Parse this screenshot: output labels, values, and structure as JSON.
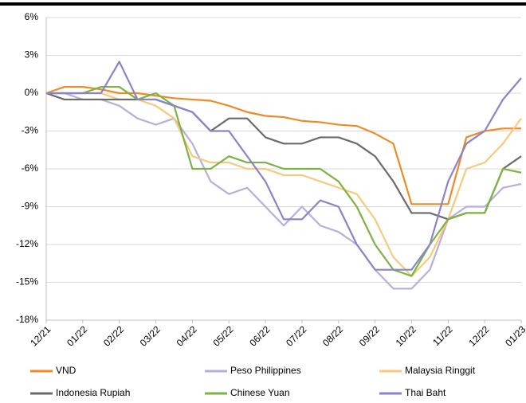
{
  "chart_data": {
    "type": "line",
    "categories": [
      "12/21",
      null,
      "01/22",
      null,
      "02/22",
      null,
      "03/22",
      null,
      "04/22",
      null,
      "05/22",
      null,
      "06/22",
      null,
      "07/22",
      null,
      "08/22",
      null,
      "09/22",
      null,
      "10/22",
      null,
      "11/22",
      null,
      "12/22",
      null,
      "01/23"
    ],
    "series": [
      {
        "name": "VND",
        "color": "#f08a24",
        "values": [
          0,
          0.5,
          0.5,
          0.3,
          0,
          0,
          -0.2,
          -0.4,
          -0.5,
          -0.6,
          -1,
          -1.5,
          -1.8,
          -1.9,
          -2.2,
          -2.3,
          -2.5,
          -2.6,
          -3.2,
          -4,
          -8.8,
          -8.8,
          -8.8,
          -3.5,
          -3,
          -2.8,
          -2.8
        ]
      },
      {
        "name": "Peso Philippines",
        "color": "#b7aede",
        "values": [
          0,
          0,
          -0.5,
          -0.5,
          -1,
          -2,
          -2.5,
          -2,
          -4,
          -7,
          -8,
          -7.5,
          -9,
          -10.5,
          -9,
          -10.5,
          -11,
          -12,
          -14,
          -15.5,
          -15.5,
          -14,
          -10,
          -9,
          -9,
          -7.5,
          -7.2
        ]
      },
      {
        "name": "Malaysia Ringgit",
        "color": "#f7c97c",
        "values": [
          0,
          0,
          0,
          0,
          -0.5,
          -0.5,
          -1,
          -2,
          -5,
          -5.5,
          -5.5,
          -6,
          -6,
          -6.5,
          -6.5,
          -7,
          -7.5,
          -8,
          -10,
          -13,
          -14.5,
          -13,
          -10,
          -6,
          -5.5,
          -4,
          -2
        ]
      },
      {
        "name": "Indonesia Rupiah",
        "color": "#6b6b6b",
        "values": [
          0,
          -0.5,
          -0.5,
          -0.5,
          -0.5,
          -0.5,
          -0.5,
          -1,
          -1.5,
          -3,
          -2,
          -2,
          -3.5,
          -4,
          -4,
          -3.5,
          -3.5,
          -4,
          -5,
          -7,
          -9.5,
          -9.5,
          -10,
          -9.5,
          -9.5,
          -6,
          -5
        ]
      },
      {
        "name": "Chinese Yuan",
        "color": "#7cb342",
        "values": [
          0,
          0,
          0,
          0.5,
          0.5,
          -0.5,
          0,
          -1,
          -6,
          -6,
          -5,
          -5.5,
          -5.5,
          -6,
          -6,
          -6,
          -7,
          -9,
          -12,
          -14,
          -14.5,
          -12,
          -10,
          -9.5,
          -9.5,
          -6,
          -6.3
        ]
      },
      {
        "name": "Thai Baht",
        "color": "#8983c9",
        "values": [
          0,
          0,
          0,
          0,
          2.5,
          -0.5,
          -0.5,
          -1,
          -1.5,
          -3,
          -3,
          -5,
          -7,
          -10,
          -10,
          -8.5,
          -9,
          -12,
          -14,
          -14,
          -14,
          -12,
          -7,
          -4,
          -3,
          -0.5,
          1.2
        ]
      }
    ],
    "ylim": [
      -18,
      6
    ],
    "yticks": [
      {
        "value": -18,
        "label": "-18%"
      },
      {
        "value": -15,
        "label": "-15%"
      },
      {
        "value": -12,
        "label": "-12%"
      },
      {
        "value": -9,
        "label": "-9%"
      },
      {
        "value": -6,
        "label": "-6%"
      },
      {
        "value": -3,
        "label": "-3%"
      },
      {
        "value": 0,
        "label": "0%"
      },
      {
        "value": 3,
        "label": "3%"
      },
      {
        "value": 6,
        "label": "6%"
      }
    ],
    "grid": true
  }
}
